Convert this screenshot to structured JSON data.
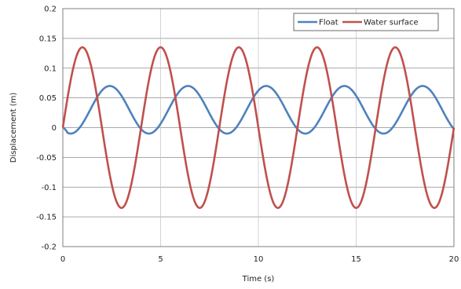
{
  "chart_data": {
    "type": "line",
    "title": "",
    "xlabel": "Time (s)",
    "ylabel": "Displacement (m)",
    "xlim": [
      0,
      20
    ],
    "ylim": [
      -0.2,
      0.2
    ],
    "x_ticks": [
      "0",
      "5",
      "10",
      "15",
      "20"
    ],
    "y_ticks": [
      "0.2",
      "0.15",
      "0.1",
      "0.05",
      "0",
      "-0.05",
      "-0.1",
      "-0.15",
      "-0.2"
    ],
    "grid": true,
    "legend_position": "top-right",
    "period_s": 4,
    "series": [
      {
        "name": "Float",
        "color": "#4F81BD",
        "x": [
          0,
          0.5,
          1.0,
          1.5,
          2.0,
          2.5,
          3.0,
          3.5,
          4.0,
          4.5,
          5.0,
          5.5,
          6.0,
          6.5,
          7.0,
          7.5,
          8.0,
          8.5,
          9.0,
          9.5,
          10.0,
          10.5,
          11.0,
          11.5,
          12.0,
          12.5,
          13.0,
          13.5,
          14.0,
          14.5,
          15.0,
          15.5,
          16.0,
          16.5,
          17.0,
          17.5,
          18.0,
          18.5,
          19.0,
          19.5,
          20.0
        ],
        "y": [
          0.0,
          0.018,
          0.05,
          0.068,
          0.065,
          0.042,
          0.014,
          -0.005,
          -0.01,
          0.008,
          0.04,
          0.064,
          0.069,
          0.052,
          0.024,
          0.0,
          -0.01,
          0.008,
          0.04,
          0.064,
          0.069,
          0.052,
          0.024,
          0.0,
          -0.01,
          0.008,
          0.04,
          0.064,
          0.069,
          0.052,
          0.024,
          0.0,
          -0.01,
          0.008,
          0.04,
          0.064,
          0.069,
          0.052,
          0.024,
          0.0,
          -0.01
        ]
      },
      {
        "name": "Water surface",
        "color": "#C0504D",
        "x": [
          0,
          0.5,
          1.0,
          1.5,
          2.0,
          2.5,
          3.0,
          3.5,
          4.0,
          4.5,
          5.0,
          5.5,
          6.0,
          6.5,
          7.0,
          7.5,
          8.0,
          8.5,
          9.0,
          9.5,
          10.0,
          10.5,
          11.0,
          11.5,
          12.0,
          12.5,
          13.0,
          13.5,
          14.0,
          14.5,
          15.0,
          15.5,
          16.0,
          16.5,
          17.0,
          17.5,
          18.0,
          18.5,
          19.0,
          19.5,
          20.0
        ],
        "y": [
          0.0,
          0.095,
          0.135,
          0.095,
          0.0,
          -0.095,
          -0.135,
          -0.095,
          0.0,
          0.095,
          0.135,
          0.095,
          0.0,
          -0.095,
          -0.135,
          -0.095,
          0.0,
          0.095,
          0.135,
          0.095,
          0.0,
          -0.095,
          -0.135,
          -0.095,
          0.0,
          0.095,
          0.135,
          0.095,
          0.0,
          -0.095,
          -0.135,
          -0.095,
          0.0,
          0.095,
          0.135,
          0.095,
          0.0,
          -0.095,
          -0.135,
          -0.095,
          0.0
        ]
      }
    ]
  }
}
